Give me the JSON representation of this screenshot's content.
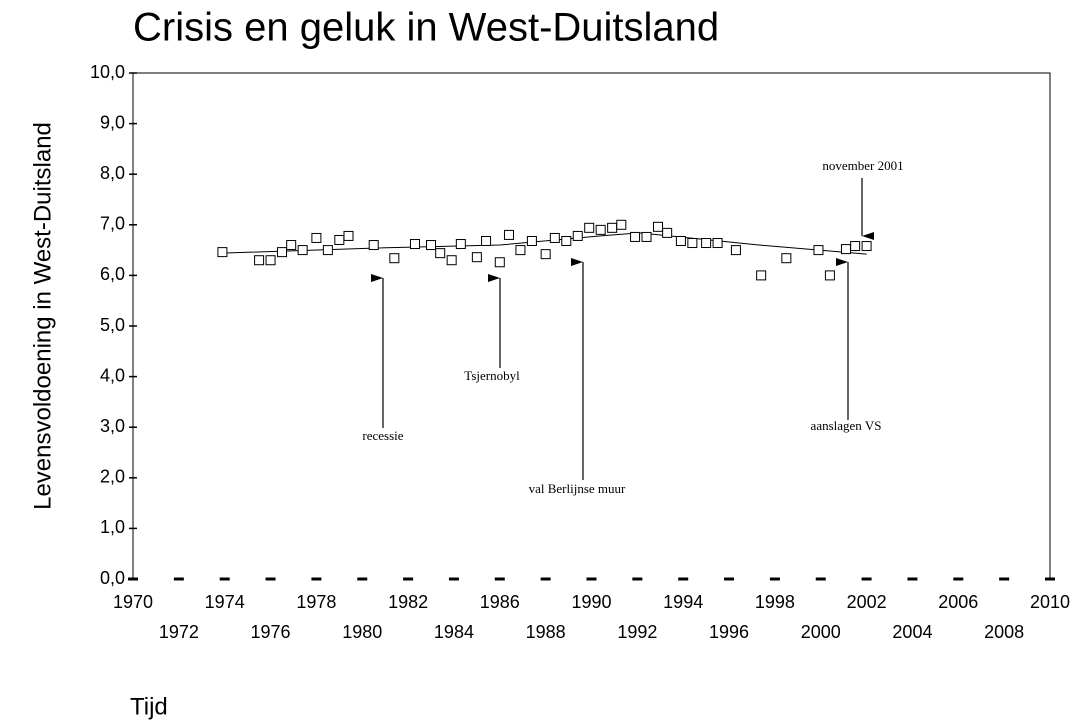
{
  "chart_data": {
    "type": "scatter",
    "title": "Crisis en geluk in West-Duitsland",
    "x_label": "Tijd",
    "y_label": "Levensvoldoening in West-Duitsland",
    "xlim": [
      1970,
      2010
    ],
    "ylim": [
      0,
      10
    ],
    "xticks": [
      1970,
      1972,
      1974,
      1976,
      1978,
      1980,
      1982,
      1984,
      1986,
      1988,
      1990,
      1992,
      1994,
      1996,
      1998,
      2000,
      2002,
      2004,
      2006,
      2008,
      2010
    ],
    "yticks": [
      {
        "value": 0,
        "label": "0,0"
      },
      {
        "value": 1,
        "label": "1,0"
      },
      {
        "value": 2,
        "label": "2,0"
      },
      {
        "value": 3,
        "label": "3,0"
      },
      {
        "value": 4,
        "label": "4,0"
      },
      {
        "value": 5,
        "label": "5,0"
      },
      {
        "value": 6,
        "label": "6,0"
      },
      {
        "value": 7,
        "label": "7,0"
      },
      {
        "value": 8,
        "label": "8,0"
      },
      {
        "value": 9,
        "label": "9,0"
      },
      {
        "value": 10,
        "label": "10,0"
      }
    ],
    "grid": false,
    "color": "#000000",
    "x": [
      1973.9,
      1975.5,
      1976.0,
      1976.5,
      1976.9,
      1977.4,
      1978.0,
      1978.5,
      1979.0,
      1979.4,
      1980.5,
      1981.4,
      1982.3,
      1983.0,
      1983.4,
      1983.9,
      1984.3,
      1985.0,
      1985.4,
      1986.0,
      1986.4,
      1986.9,
      1987.4,
      1988.0,
      1988.4,
      1988.9,
      1989.4,
      1989.9,
      1990.4,
      1990.9,
      1991.3,
      1991.9,
      1992.4,
      1992.9,
      1993.3,
      1993.9,
      1994.4,
      1995.0,
      1995.5,
      1996.3,
      1997.4,
      1998.5,
      1999.9,
      2000.4,
      2001.1,
      2001.5,
      2002.0
    ],
    "values": [
      6.46,
      6.3,
      6.3,
      6.46,
      6.6,
      6.5,
      6.74,
      6.5,
      6.7,
      6.78,
      6.6,
      6.34,
      6.62,
      6.6,
      6.44,
      6.3,
      6.62,
      6.36,
      6.68,
      6.26,
      6.8,
      6.5,
      6.68,
      6.42,
      6.74,
      6.68,
      6.78,
      6.94,
      6.9,
      6.94,
      7.0,
      6.76,
      6.76,
      6.96,
      6.84,
      6.68,
      6.64,
      6.64,
      6.64,
      6.5,
      6.0,
      6.34,
      6.5,
      6.0,
      6.52,
      6.58,
      6.58
    ],
    "trend": {
      "x": [
        1973.9,
        1980.5,
        1986.0,
        1990.4,
        1992.1,
        1997.3,
        2002.0
      ],
      "values": [
        6.44,
        6.54,
        6.6,
        6.78,
        6.84,
        6.6,
        6.42
      ]
    },
    "annotations": [
      {
        "text": "november 2001"
      },
      {
        "text": "aanslagen VS"
      },
      {
        "text": "val Berlijnse muur"
      },
      {
        "text": "Tsjernobyl"
      },
      {
        "text": "recessie"
      }
    ]
  }
}
